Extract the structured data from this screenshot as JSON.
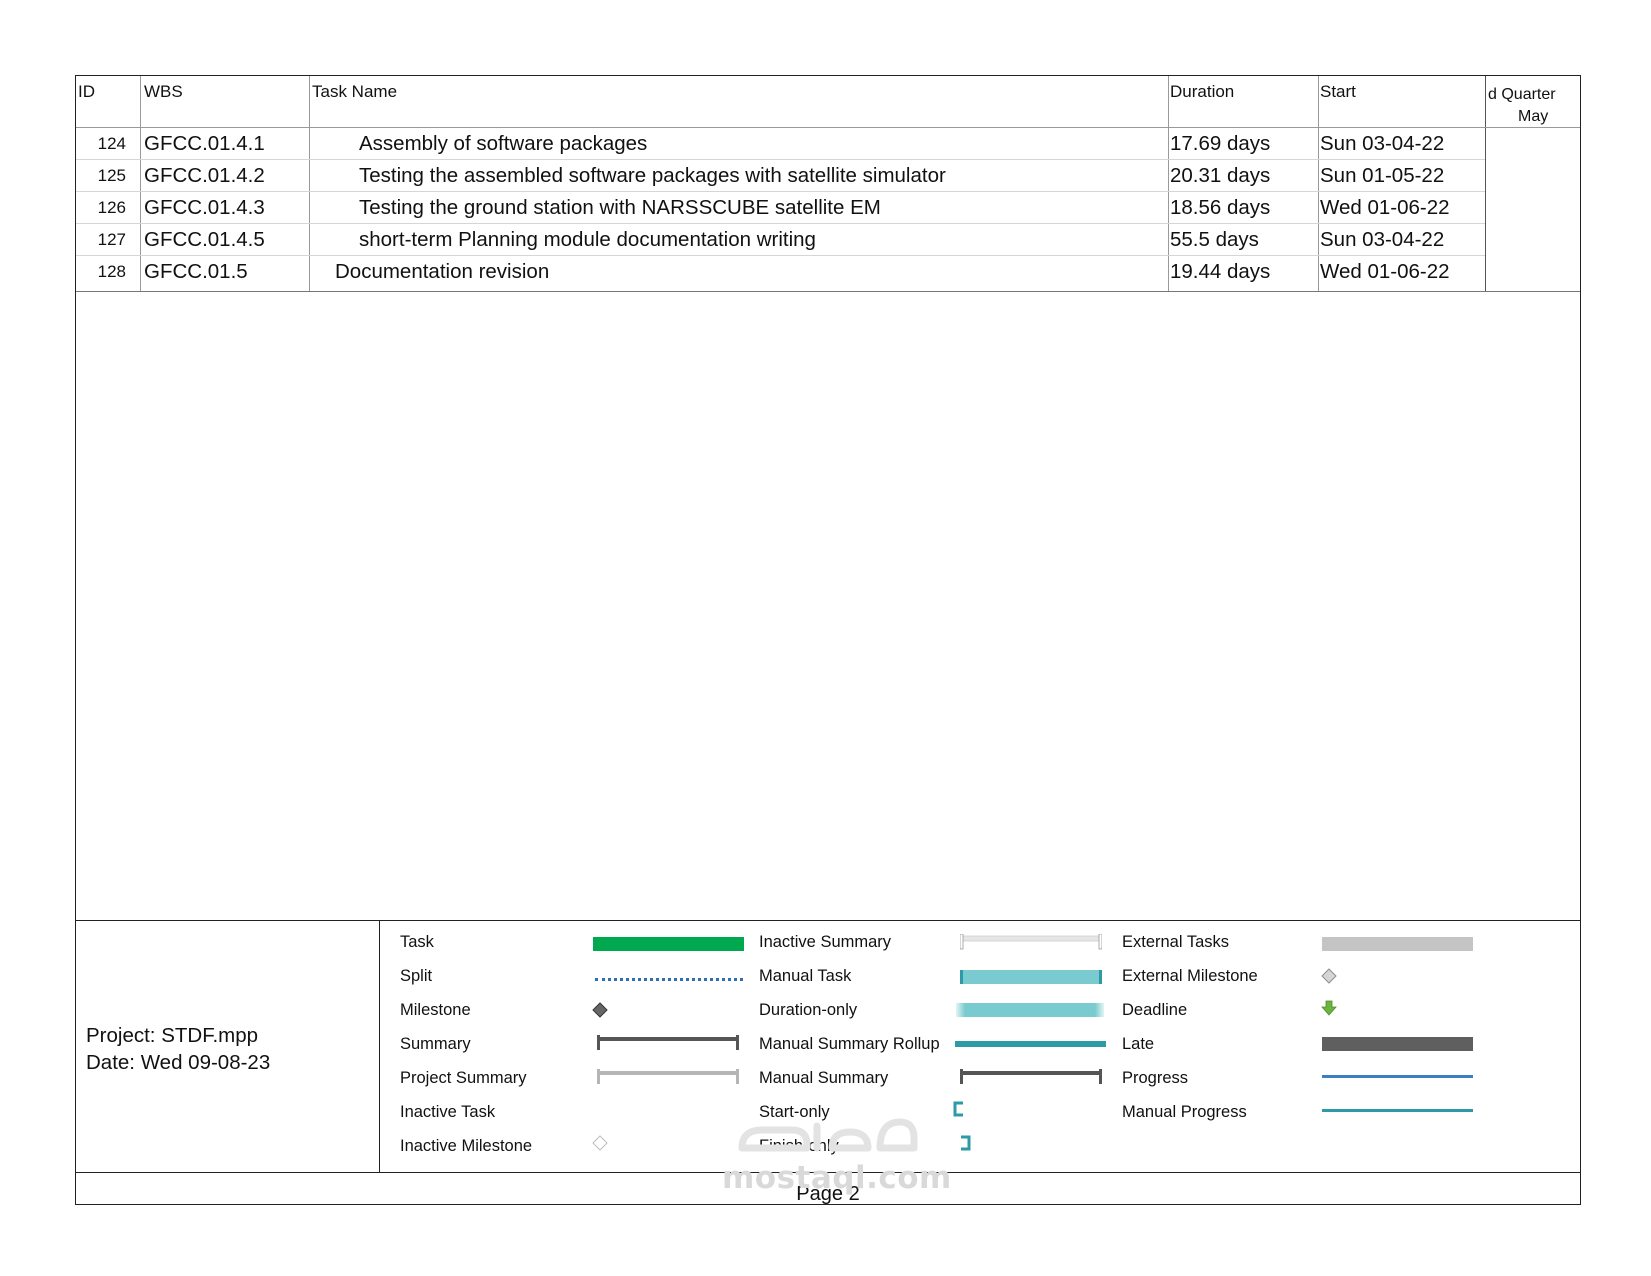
{
  "headers": {
    "id": "ID",
    "wbs": "WBS",
    "task_name": "Task Name",
    "duration": "Duration",
    "start": "Start",
    "timeline_quarter": "d Quarter",
    "timeline_month": "May"
  },
  "rows": [
    {
      "id": "124",
      "wbs": "GFCC.01.4.1",
      "name": "Assembly of software packages",
      "indent": 2,
      "duration": "17.69 days",
      "start": "Sun 03-04-22"
    },
    {
      "id": "125",
      "wbs": "GFCC.01.4.2",
      "name": "Testing the assembled software packages with satellite simulator",
      "indent": 2,
      "duration": "20.31 days",
      "start": "Sun 01-05-22"
    },
    {
      "id": "126",
      "wbs": "GFCC.01.4.3",
      "name": "Testing the ground station with NARSSCUBE satellite EM",
      "indent": 2,
      "duration": "18.56 days",
      "start": "Wed 01-06-22"
    },
    {
      "id": "127",
      "wbs": "GFCC.01.4.5",
      "name": "short-term Planning module documentation writing",
      "indent": 2,
      "duration": "55.5 days",
      "start": "Sun 03-04-22"
    },
    {
      "id": "128",
      "wbs": "GFCC.01.5",
      "name": "Documentation revision",
      "indent": 1,
      "duration": "19.44 days",
      "start": "Wed 01-06-22"
    }
  ],
  "project": {
    "name": "Project: STDF.mpp",
    "date": "Date: Wed 09-08-23"
  },
  "legend": {
    "col1": [
      "Task",
      "Split",
      "Milestone",
      "Summary",
      "Project Summary",
      "Inactive Task",
      "Inactive Milestone"
    ],
    "col2": [
      "Inactive Summary",
      "Manual Task",
      "Duration-only",
      "Manual Summary Rollup",
      "Manual Summary",
      "Start-only",
      "Finish-only"
    ],
    "col3": [
      "External Tasks",
      "External Milestone",
      "Deadline",
      "Late",
      "Progress",
      "Manual Progress"
    ]
  },
  "colors": {
    "task": "#00a84f",
    "split": "#2e6fb5",
    "milestone": "#666666",
    "summary": "#555555",
    "project_summary": "#b5b5b5",
    "manual_task": "#79cbd0",
    "manual_rollup": "#2e9aa5",
    "external": "#c4c4c4",
    "deadline": "#6db33f",
    "late": "#5f5f5f",
    "progress": "#3c7fc0",
    "manual_progress": "#2e9aa5"
  },
  "footer": {
    "page": "Page 2"
  },
  "watermark": {
    "text": "mostaql.com"
  }
}
